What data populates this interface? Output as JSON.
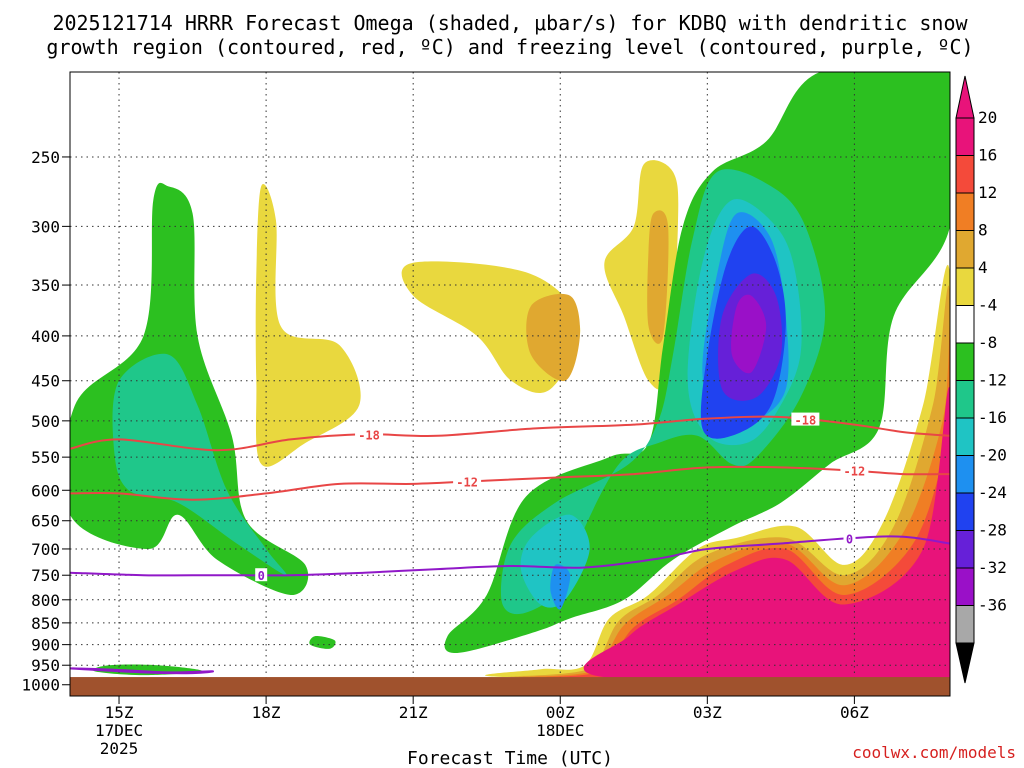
{
  "chart_data": {
    "type": "time-height cross section",
    "title_line1": "2025121714 HRRR Forecast Omega (shaded, μbar/s) for KDBQ with dendritic snow",
    "title_line2": "growth region (contoured, red, ºC) and freezing level (contoured, purple, ºC)",
    "xlabel": "Forecast Time (UTC)",
    "credit": "coolwx.com/models",
    "x_ticks": [
      {
        "hour": 15,
        "label": "15Z",
        "sub1": "17DEC",
        "sub2": "2025"
      },
      {
        "hour": 18,
        "label": "18Z",
        "sub1": "",
        "sub2": ""
      },
      {
        "hour": 21,
        "label": "21Z",
        "sub1": "",
        "sub2": ""
      },
      {
        "hour": 24,
        "label": "00Z",
        "sub1": "18DEC",
        "sub2": ""
      },
      {
        "hour": 27,
        "label": "03Z",
        "sub1": "",
        "sub2": ""
      },
      {
        "hour": 30,
        "label": "06Z",
        "sub1": "",
        "sub2": ""
      }
    ],
    "xlim_hours": [
      14.0,
      31.95
    ],
    "y_ticks": [
      250,
      300,
      350,
      400,
      450,
      500,
      550,
      600,
      650,
      700,
      750,
      800,
      850,
      900,
      950,
      1000
    ],
    "ylim_hpa": [
      200,
      1030
    ],
    "y_scale": "log-pressure",
    "surface_pressure_hpa": 980,
    "colorbar": {
      "labels": [
        "20",
        "16",
        "12",
        "8",
        "4",
        "-4",
        "-8",
        "-12",
        "-16",
        "-20",
        "-24",
        "-28",
        "-32",
        "-36"
      ],
      "colors": [
        "#e8137a",
        "#f44a3a",
        "#f07e24",
        "#e0a830",
        "#e9d83e",
        "#ffffff",
        "#2cc020",
        "#1fc78a",
        "#1fc4c4",
        "#1e90f0",
        "#2042f0",
        "#6620d8",
        "#9a10c8",
        "#a8a8a8"
      ]
    },
    "omega_regions": [
      {
        "level": -8,
        "color": "#2cc020",
        "points": [
          [
            16.0,
            270
          ],
          [
            16.5,
            290
          ],
          [
            16.6,
            400
          ],
          [
            17.3,
            520
          ],
          [
            17.6,
            650
          ],
          [
            18.8,
            730
          ],
          [
            18.5,
            790
          ],
          [
            17.0,
            720
          ],
          [
            16.2,
            640
          ],
          [
            15.6,
            700
          ],
          [
            14.0,
            640
          ],
          [
            14.1,
            480
          ],
          [
            15.5,
            400
          ],
          [
            15.7,
            280
          ]
        ]
      },
      {
        "level": -12,
        "color": "#1fc78a",
        "points": [
          [
            15.0,
            450
          ],
          [
            16.0,
            420
          ],
          [
            16.6,
            480
          ],
          [
            17.2,
            600
          ],
          [
            18.0,
            700
          ],
          [
            18.4,
            750
          ],
          [
            17.4,
            690
          ],
          [
            16.2,
            620
          ],
          [
            15.2,
            600
          ],
          [
            14.9,
            540
          ]
        ]
      },
      {
        "level": 4,
        "color": "#e9d83e",
        "points": [
          [
            17.9,
            270
          ],
          [
            18.2,
            295
          ],
          [
            18.3,
            390
          ],
          [
            19.5,
            410
          ],
          [
            19.9,
            480
          ],
          [
            18.8,
            530
          ],
          [
            17.9,
            560
          ],
          [
            17.8,
            450
          ],
          [
            17.8,
            340
          ]
        ]
      },
      {
        "level": -8,
        "color": "#2cc020",
        "points": [
          [
            19.0,
            880
          ],
          [
            19.4,
            890
          ],
          [
            19.3,
            910
          ],
          [
            18.9,
            900
          ]
        ]
      },
      {
        "level": 4,
        "color": "#e9d83e",
        "points": [
          [
            21.0,
            330
          ],
          [
            23.4,
            340
          ],
          [
            24.4,
            390
          ],
          [
            23.8,
            460
          ],
          [
            23.0,
            450
          ],
          [
            22.3,
            400
          ],
          [
            21.0,
            360
          ]
        ]
      },
      {
        "level": 8,
        "color": "#e0a830",
        "points": [
          [
            23.4,
            370
          ],
          [
            24.2,
            360
          ],
          [
            24.4,
            400
          ],
          [
            24.1,
            450
          ],
          [
            23.4,
            420
          ]
        ]
      },
      {
        "level": 4,
        "color": "#e9d83e",
        "points": [
          [
            25.7,
            255
          ],
          [
            26.3,
            260
          ],
          [
            26.4,
            300
          ],
          [
            26.2,
            440
          ],
          [
            25.8,
            450
          ],
          [
            25.3,
            380
          ],
          [
            24.9,
            330
          ],
          [
            25.5,
            300
          ]
        ]
      },
      {
        "level": 8,
        "color": "#e0a830",
        "points": [
          [
            25.9,
            290
          ],
          [
            26.2,
            300
          ],
          [
            26.1,
            400
          ],
          [
            25.8,
            390
          ],
          [
            25.8,
            320
          ]
        ]
      },
      {
        "level": -8,
        "color": "#2cc020",
        "points": [
          [
            29.3,
            200
          ],
          [
            31.95,
            200
          ],
          [
            31.95,
            300
          ],
          [
            30.8,
            380
          ],
          [
            30.5,
            510
          ],
          [
            29.5,
            560
          ],
          [
            28.5,
            620
          ],
          [
            27.5,
            660
          ],
          [
            26.3,
            720
          ],
          [
            25.3,
            800
          ],
          [
            24.2,
            840
          ],
          [
            23.5,
            870
          ],
          [
            21.9,
            920
          ],
          [
            21.7,
            880
          ],
          [
            22.5,
            790
          ],
          [
            23.3,
            610
          ],
          [
            25.0,
            550
          ],
          [
            25.8,
            530
          ],
          [
            26.1,
            410
          ],
          [
            26.5,
            300
          ],
          [
            27.1,
            260
          ],
          [
            28.2,
            240
          ]
        ]
      },
      {
        "level": -12,
        "color": "#1fc78a",
        "points": [
          [
            27.2,
            260
          ],
          [
            28.3,
            270
          ],
          [
            29.0,
            300
          ],
          [
            29.4,
            380
          ],
          [
            28.9,
            470
          ],
          [
            28.0,
            550
          ],
          [
            27.5,
            560
          ],
          [
            26.8,
            520
          ],
          [
            26.0,
            530
          ],
          [
            25.2,
            560
          ],
          [
            24.4,
            680
          ],
          [
            24.0,
            780
          ],
          [
            23.2,
            830
          ],
          [
            22.8,
            800
          ],
          [
            23.0,
            690
          ],
          [
            23.9,
            620
          ],
          [
            25.4,
            560
          ],
          [
            26.0,
            500
          ],
          [
            26.3,
            420
          ],
          [
            26.7,
            310
          ]
        ]
      },
      {
        "level": -16,
        "color": "#1fc4c4",
        "points": [
          [
            27.5,
            280
          ],
          [
            28.4,
            300
          ],
          [
            28.8,
            340
          ],
          [
            28.9,
            420
          ],
          [
            28.4,
            490
          ],
          [
            27.8,
            530
          ],
          [
            27.0,
            520
          ],
          [
            26.6,
            450
          ],
          [
            26.9,
            330
          ]
        ]
      },
      {
        "level": -16,
        "color": "#1fc4c4",
        "points": [
          [
            23.4,
            680
          ],
          [
            24.2,
            640
          ],
          [
            24.6,
            700
          ],
          [
            24.1,
            800
          ],
          [
            23.6,
            810
          ],
          [
            23.2,
            740
          ]
        ]
      },
      {
        "level": -20,
        "color": "#1e90f0",
        "points": [
          [
            23.9,
            730
          ],
          [
            24.2,
            750
          ],
          [
            24.0,
            820
          ],
          [
            23.8,
            780
          ]
        ]
      },
      {
        "level": -20,
        "color": "#1e90f0",
        "points": [
          [
            27.6,
            290
          ],
          [
            28.3,
            310
          ],
          [
            28.6,
            380
          ],
          [
            28.6,
            460
          ],
          [
            28.0,
            500
          ],
          [
            27.3,
            510
          ],
          [
            26.9,
            440
          ],
          [
            27.2,
            340
          ]
        ]
      },
      {
        "level": -24,
        "color": "#2042f0",
        "points": [
          [
            27.9,
            300
          ],
          [
            28.4,
            330
          ],
          [
            28.6,
            390
          ],
          [
            28.3,
            480
          ],
          [
            27.5,
            520
          ],
          [
            26.9,
            510
          ],
          [
            27.0,
            420
          ],
          [
            27.4,
            330
          ]
        ]
      },
      {
        "level": -28,
        "color": "#6620d8",
        "points": [
          [
            27.9,
            340
          ],
          [
            28.4,
            360
          ],
          [
            28.5,
            420
          ],
          [
            28.0,
            470
          ],
          [
            27.3,
            460
          ],
          [
            27.3,
            380
          ]
        ]
      },
      {
        "level": -32,
        "color": "#9a10c8",
        "points": [
          [
            27.9,
            360
          ],
          [
            28.2,
            390
          ],
          [
            27.9,
            440
          ],
          [
            27.5,
            420
          ],
          [
            27.6,
            370
          ]
        ]
      },
      {
        "level": -8,
        "color": "#2cc020",
        "points": [
          [
            14.8,
            950
          ],
          [
            15.8,
            950
          ],
          [
            16.7,
            965
          ],
          [
            15.5,
            975
          ],
          [
            14.5,
            965
          ]
        ]
      },
      {
        "level": 4,
        "color": "#e9d83e",
        "points": [
          [
            31.95,
            340
          ],
          [
            31.95,
            980
          ],
          [
            23.0,
            980
          ],
          [
            23.6,
            960
          ],
          [
            24.5,
            950
          ],
          [
            25.0,
            840
          ],
          [
            25.8,
            790
          ],
          [
            26.8,
            700
          ],
          [
            27.6,
            680
          ],
          [
            28.8,
            660
          ],
          [
            29.8,
            730
          ],
          [
            30.6,
            650
          ],
          [
            31.4,
            480
          ]
        ]
      },
      {
        "level": 8,
        "color": "#e0a830",
        "points": [
          [
            31.95,
            360
          ],
          [
            31.95,
            980
          ],
          [
            23.3,
            980
          ],
          [
            24.6,
            958
          ],
          [
            25.2,
            845
          ],
          [
            26.0,
            790
          ],
          [
            27.0,
            710
          ],
          [
            28.6,
            680
          ],
          [
            29.8,
            750
          ],
          [
            30.8,
            660
          ],
          [
            31.6,
            480
          ]
        ]
      },
      {
        "level": 12,
        "color": "#f07e24",
        "points": [
          [
            31.95,
            400
          ],
          [
            31.95,
            980
          ],
          [
            23.6,
            980
          ],
          [
            24.7,
            962
          ],
          [
            25.3,
            855
          ],
          [
            26.2,
            790
          ],
          [
            27.2,
            720
          ],
          [
            28.6,
            690
          ],
          [
            29.8,
            770
          ],
          [
            31.0,
            670
          ],
          [
            31.8,
            500
          ]
        ]
      },
      {
        "level": 16,
        "color": "#f44a3a",
        "points": [
          [
            31.95,
            430
          ],
          [
            31.95,
            980
          ],
          [
            23.8,
            980
          ],
          [
            24.8,
            965
          ],
          [
            25.5,
            860
          ],
          [
            26.4,
            800
          ],
          [
            27.4,
            730
          ],
          [
            28.6,
            700
          ],
          [
            29.8,
            790
          ],
          [
            31.2,
            690
          ],
          [
            31.9,
            520
          ]
        ]
      },
      {
        "level": 20,
        "color": "#e8137a",
        "points": [
          [
            31.95,
            460
          ],
          [
            31.95,
            980
          ],
          [
            24.9,
            980
          ],
          [
            25.4,
            880
          ],
          [
            26.4,
            810
          ],
          [
            27.6,
            740
          ],
          [
            28.6,
            720
          ],
          [
            29.8,
            810
          ],
          [
            31.4,
            700
          ]
        ]
      }
    ],
    "isotherms": [
      {
        "label": "-18",
        "color": "#e84646",
        "label_hours": [
          20.1,
          29.0
        ],
        "points": [
          [
            14.0,
            538
          ],
          [
            15.0,
            525
          ],
          [
            17.0,
            540
          ],
          [
            18.5,
            525
          ],
          [
            20.0,
            518
          ],
          [
            21.5,
            520
          ],
          [
            23.5,
            510
          ],
          [
            25.5,
            505
          ],
          [
            27.0,
            497
          ],
          [
            28.5,
            495
          ],
          [
            30.0,
            505
          ],
          [
            31.0,
            515
          ],
          [
            31.95,
            520
          ]
        ]
      },
      {
        "label": "-12",
        "color": "#e84646",
        "label_hours": [
          22.1,
          30.0
        ],
        "points": [
          [
            14.0,
            605
          ],
          [
            15.0,
            605
          ],
          [
            16.5,
            615
          ],
          [
            18.0,
            605
          ],
          [
            19.5,
            590
          ],
          [
            21.0,
            590
          ],
          [
            22.5,
            585
          ],
          [
            24.0,
            580
          ],
          [
            25.5,
            575
          ],
          [
            27.0,
            565
          ],
          [
            28.5,
            565
          ],
          [
            30.0,
            570
          ],
          [
            31.0,
            575
          ],
          [
            31.95,
            575
          ]
        ]
      },
      {
        "label": "0",
        "color": "#9018c8",
        "label_hours": [
          17.9,
          29.9
        ],
        "points": [
          [
            14.0,
            745
          ],
          [
            15.5,
            750
          ],
          [
            17.0,
            750
          ],
          [
            18.5,
            750
          ],
          [
            20.0,
            745
          ],
          [
            21.5,
            738
          ],
          [
            23.0,
            732
          ],
          [
            24.5,
            735
          ],
          [
            26.0,
            718
          ],
          [
            27.0,
            700
          ],
          [
            28.5,
            690
          ],
          [
            30.0,
            680
          ],
          [
            31.0,
            678
          ],
          [
            31.95,
            690
          ]
        ]
      },
      {
        "label": "0",
        "color": "#9018c8",
        "label_hours": [],
        "points": [
          [
            14.0,
            958
          ],
          [
            15.0,
            962
          ],
          [
            16.0,
            968
          ],
          [
            16.9,
            965
          ],
          [
            16.5,
            970
          ],
          [
            15.5,
            968
          ]
        ]
      }
    ]
  }
}
